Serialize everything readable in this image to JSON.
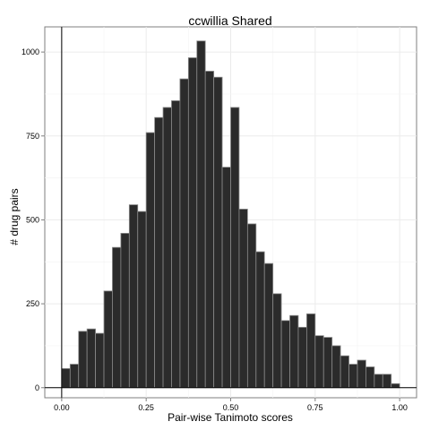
{
  "chart_data": {
    "type": "bar",
    "title": "ccwillia Shared",
    "xlabel": "Pair-wise Tanimoto scores",
    "ylabel": "# drug pairs",
    "xlim": [
      -0.05,
      1.05
    ],
    "ylim": [
      -30,
      1075
    ],
    "x_ticks": [
      0.0,
      0.25,
      0.5,
      0.75,
      1.0
    ],
    "x_tick_labels": [
      "0.00",
      "0.25",
      "0.50",
      "0.75",
      "1.00"
    ],
    "y_ticks": [
      0,
      250,
      500,
      750,
      1000
    ],
    "y_tick_labels": [
      "0",
      "250",
      "500",
      "750",
      "1000"
    ],
    "grid": true,
    "bin_width": 0.025,
    "bin_starts": [
      0.0,
      0.025,
      0.05,
      0.075,
      0.1,
      0.125,
      0.15,
      0.175,
      0.2,
      0.225,
      0.25,
      0.275,
      0.3,
      0.325,
      0.35,
      0.375,
      0.4,
      0.425,
      0.45,
      0.475,
      0.5,
      0.525,
      0.55,
      0.575,
      0.6,
      0.625,
      0.65,
      0.675,
      0.7,
      0.725,
      0.75,
      0.775,
      0.8,
      0.825,
      0.85,
      0.875,
      0.9,
      0.925,
      0.95,
      0.975
    ],
    "values": [
      57,
      70,
      168,
      175,
      162,
      288,
      418,
      460,
      545,
      525,
      760,
      805,
      835,
      855,
      920,
      983,
      1033,
      943,
      925,
      657,
      835,
      532,
      488,
      405,
      370,
      280,
      200,
      215,
      180,
      220,
      155,
      150,
      125,
      95,
      70,
      82,
      62,
      40,
      40,
      12
    ],
    "bar_color": "#2b2b2b",
    "bar_outline": "#8a8a8a"
  }
}
